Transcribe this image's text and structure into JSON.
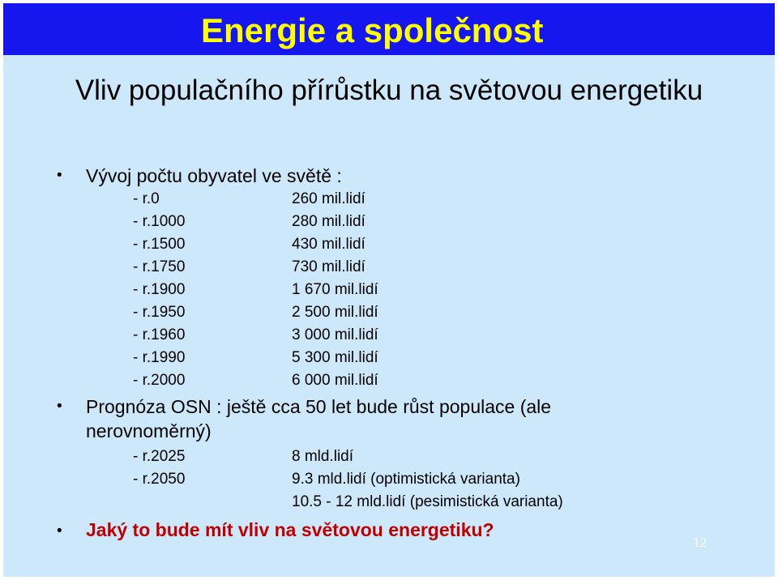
{
  "header": {
    "title": "Energie a společnost"
  },
  "subtitle": "Vliv populačního přírůstku na světovou energetiku",
  "population": {
    "heading": "Vývoj počtu obyvatel ve světě :",
    "rows": [
      {
        "year": "- r.0",
        "value": "260 mil.lidí"
      },
      {
        "year": "- r.1000",
        "value": "280 mil.lidí"
      },
      {
        "year": "- r.1500",
        "value": "430 mil.lidí"
      },
      {
        "year": "- r.1750",
        "value": "730 mil.lidí"
      },
      {
        "year": "- r.1900",
        "value": "1 670 mil.lidí"
      },
      {
        "year": "- r.1950",
        "value": "2 500 mil.lidí"
      },
      {
        "year": "- r.1960",
        "value": "3 000 mil.lidí"
      },
      {
        "year": "- r.1990",
        "value": "5 300 mil.lidí"
      },
      {
        "year": "- r.2000",
        "value": "6 000 mil.lidí"
      }
    ]
  },
  "forecast": {
    "heading_line1": "Prognóza OSN : ještě cca 50 let bude růst populace (ale",
    "heading_line2": "nerovnoměrný)",
    "rows": [
      {
        "year": "- r.2025",
        "value": "8 mld.lidí"
      },
      {
        "year": "- r.2050",
        "value": "9.3 mld.lidí (optimistická varianta)"
      },
      {
        "year": "",
        "value": "10.5 - 12 mld.lidí (pesimistická varianta)"
      }
    ]
  },
  "question": "Jaký to bude mít vliv na světovou energetiku?",
  "page_number": "12",
  "bullet_symbol": "•",
  "colors": {
    "banner": "#1616ee",
    "title": "#ffff00",
    "background": "#cce8fa",
    "question": "#c00000"
  }
}
